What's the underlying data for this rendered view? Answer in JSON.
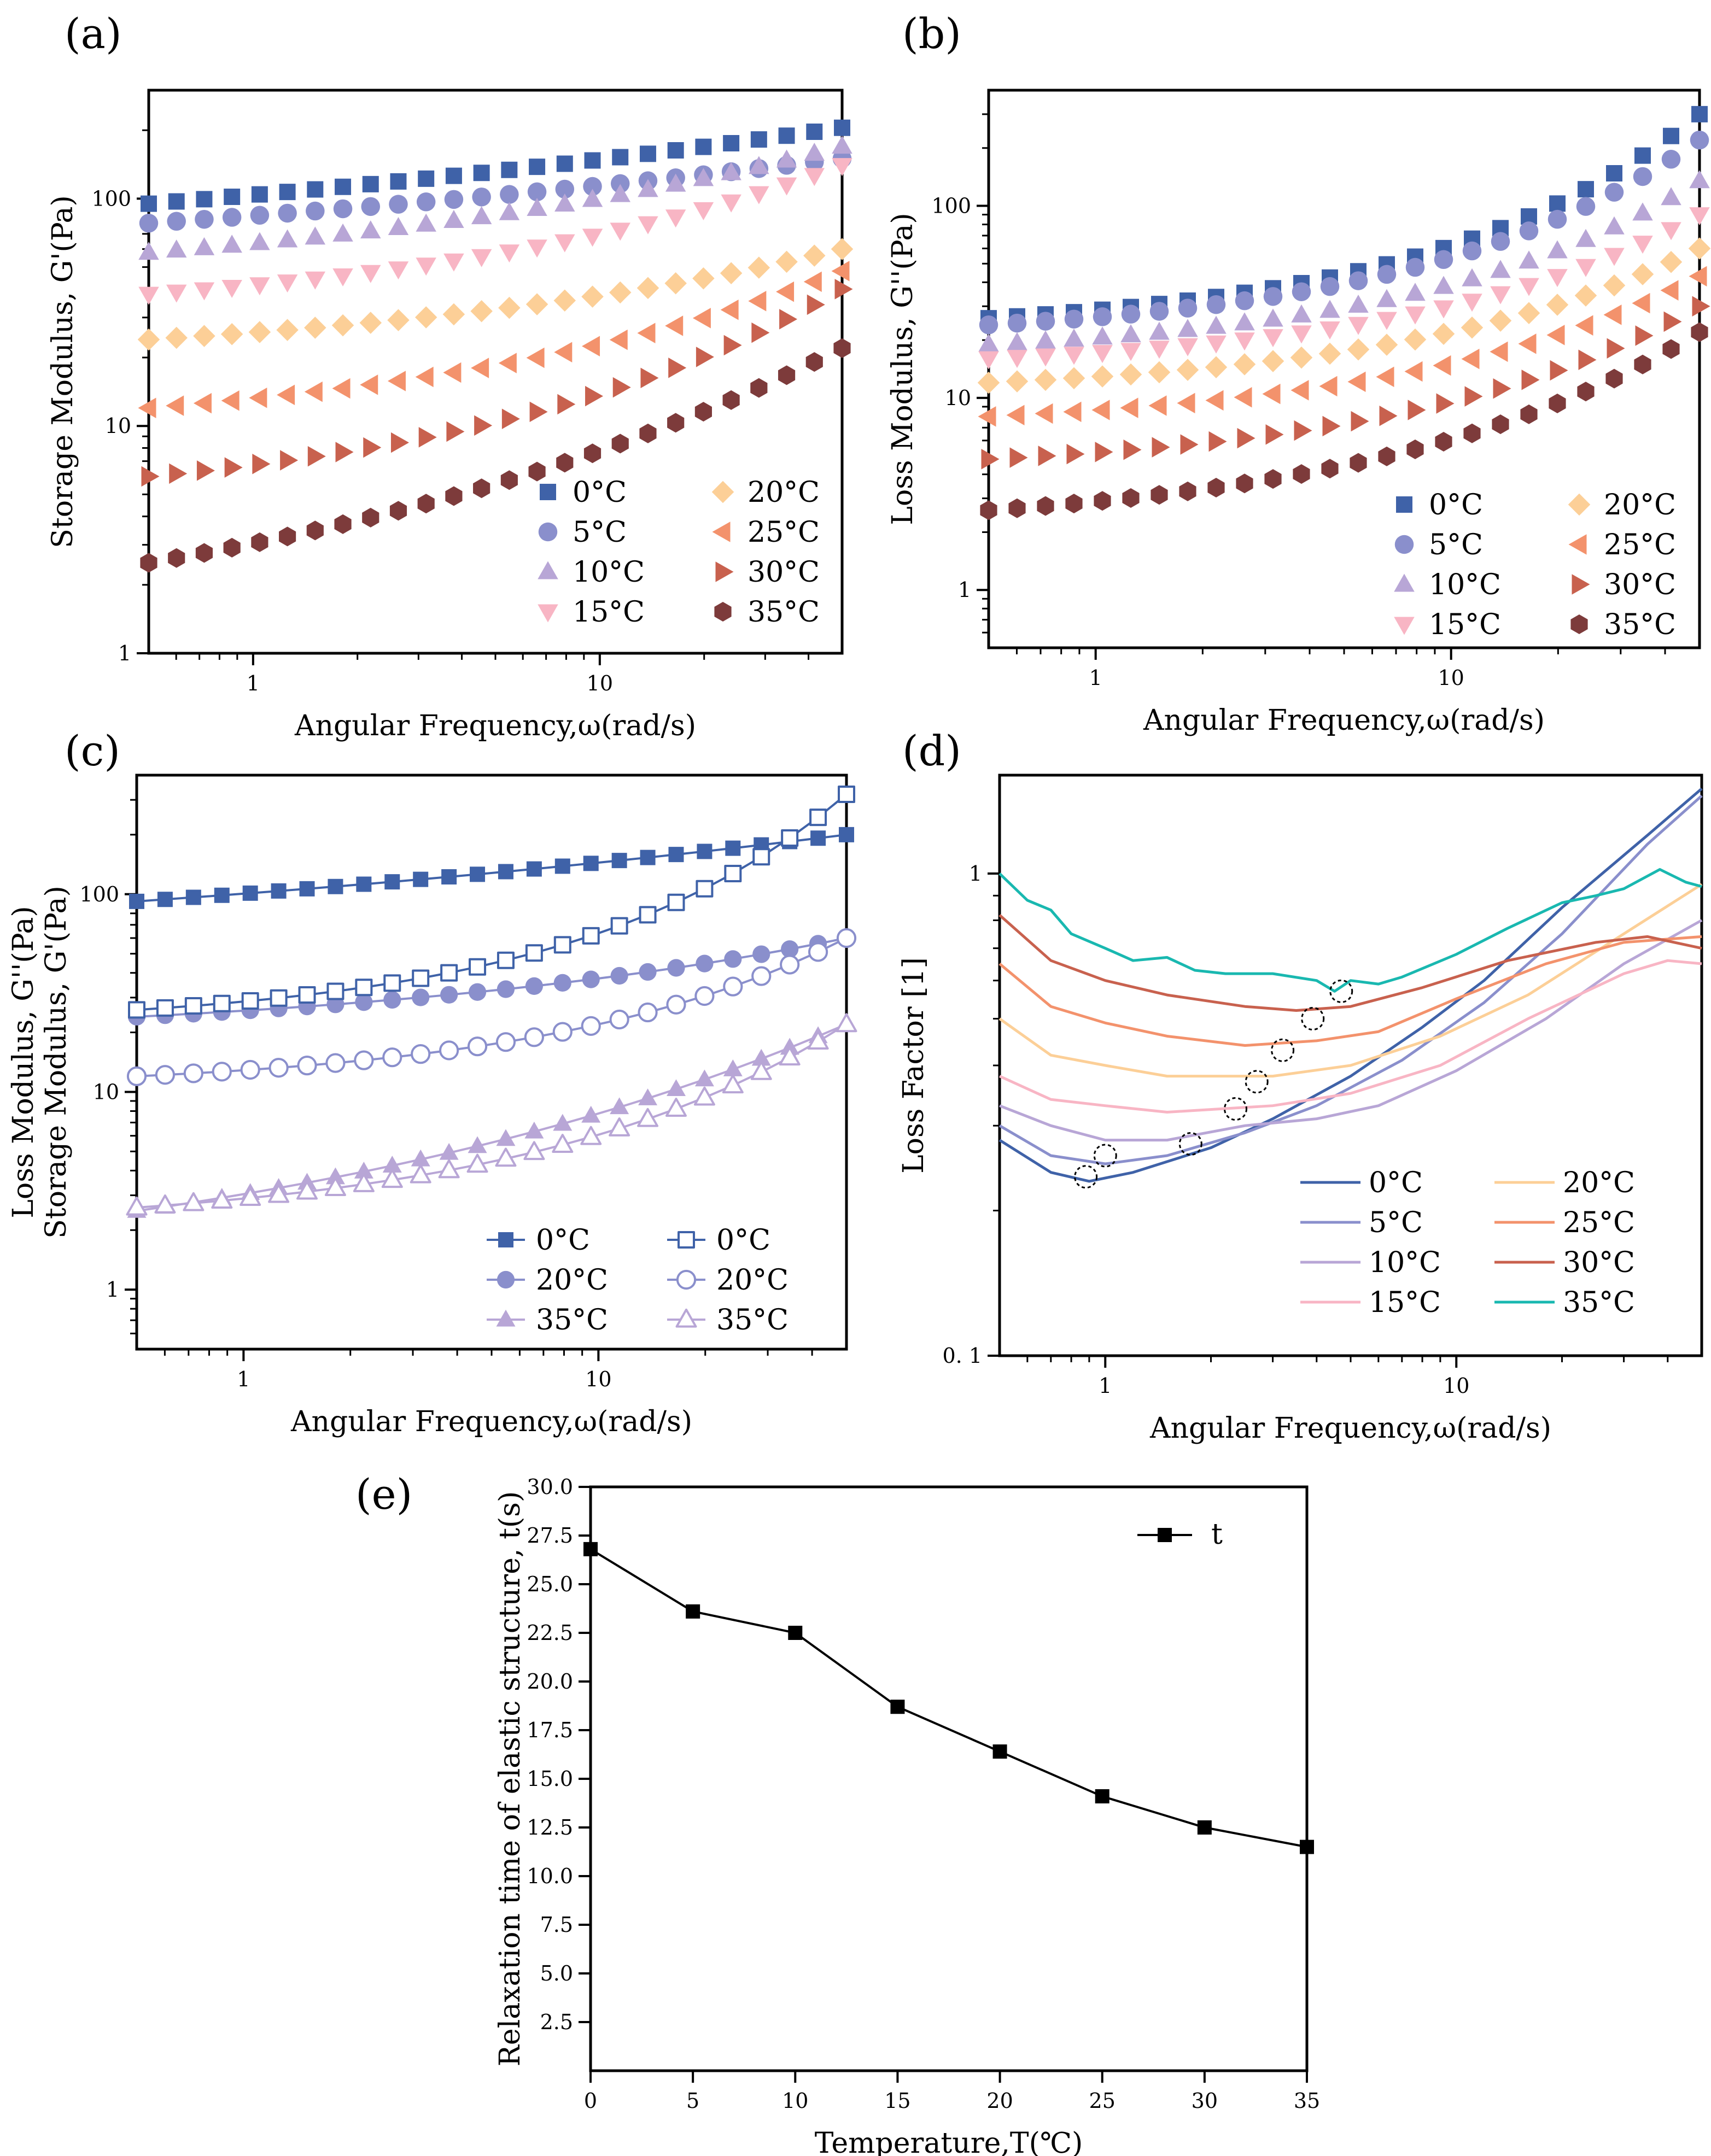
{
  "colors": {
    "c0": "#3f62a8",
    "c5": "#8a8fcc",
    "c10": "#b8a6d6",
    "c15": "#f8b5c4",
    "c20": "#fccf97",
    "c25": "#f3926c",
    "c30": "#c8614e",
    "c35": "#7d3b3b",
    "c35line": "#19b8b0",
    "black": "#000000"
  },
  "chart_data": [
    {
      "id": "a",
      "tag": "(a)",
      "type": "scatter",
      "xscale": "log",
      "yscale": "log",
      "xlim": [
        0.5,
        50
      ],
      "ylim": [
        1,
        300
      ],
      "xlabel": "Angular Frequency,ω(rad/s)",
      "ylabel": "Storage Modulus, G'(Pa)",
      "xticks": [
        {
          "v": 1,
          "label": "1"
        },
        {
          "v": 10,
          "label": "10"
        }
      ],
      "yticks": [
        {
          "v": 1,
          "label": "1"
        },
        {
          "v": 10,
          "label": "10"
        },
        {
          "v": 100,
          "label": "100"
        }
      ],
      "legend": "bottom-right",
      "series": [
        {
          "name": "0°C",
          "color_key": "c0",
          "marker": "square",
          "fill": true,
          "start": 95,
          "end": 205,
          "curve": 0.6
        },
        {
          "name": "5°C",
          "color_key": "c5",
          "marker": "circle",
          "fill": true,
          "start": 78,
          "end": 150,
          "curve": 0.6
        },
        {
          "name": "10°C",
          "color_key": "c10",
          "marker": "triangle-up",
          "fill": true,
          "start": 58,
          "end": 170,
          "curve": 1.2
        },
        {
          "name": "15°C",
          "color_key": "c15",
          "marker": "triangle-down",
          "fill": true,
          "start": 38,
          "end": 140,
          "curve": 1.6
        },
        {
          "name": "20°C",
          "color_key": "c20",
          "marker": "diamond",
          "fill": true,
          "start": 24,
          "end": 60,
          "curve": 1.4
        },
        {
          "name": "25°C",
          "color_key": "c25",
          "marker": "triangle-left",
          "fill": true,
          "start": 12,
          "end": 48,
          "curve": 1.6
        },
        {
          "name": "30°C",
          "color_key": "c30",
          "marker": "triangle-right",
          "fill": true,
          "start": 6,
          "end": 40,
          "curve": 1.8
        },
        {
          "name": "35°C",
          "color_key": "c35",
          "marker": "hexagon",
          "fill": true,
          "start": 2.5,
          "end": 22,
          "curve": 1.1
        }
      ]
    },
    {
      "id": "b",
      "tag": "(b)",
      "type": "scatter",
      "xscale": "log",
      "yscale": "log",
      "xlim": [
        0.5,
        50
      ],
      "ylim": [
        0.5,
        400
      ],
      "xlabel": "Angular Frequency,ω(rad/s)",
      "ylabel": "Loss Modulus, G''(Pa)",
      "xticks": [
        {
          "v": 1,
          "label": "1"
        },
        {
          "v": 10,
          "label": "10"
        }
      ],
      "yticks": [
        {
          "v": 1,
          "label": "1"
        },
        {
          "v": 10,
          "label": "10"
        },
        {
          "v": 100,
          "label": "100"
        }
      ],
      "legend": "bottom-right",
      "series": [
        {
          "name": "0°C",
          "color_key": "c0",
          "marker": "square",
          "fill": true,
          "start": 26,
          "end": 300,
          "curve": 2.6
        },
        {
          "name": "5°C",
          "color_key": "c5",
          "marker": "circle",
          "fill": true,
          "start": 24,
          "end": 220,
          "curve": 2.5
        },
        {
          "name": "10°C",
          "color_key": "c10",
          "marker": "triangle-up",
          "fill": true,
          "start": 19,
          "end": 135,
          "curve": 2.5
        },
        {
          "name": "15°C",
          "color_key": "c15",
          "marker": "triangle-down",
          "fill": true,
          "start": 16,
          "end": 90,
          "curve": 2.5
        },
        {
          "name": "20°C",
          "color_key": "c20",
          "marker": "diamond",
          "fill": true,
          "start": 12,
          "end": 60,
          "curve": 2.4
        },
        {
          "name": "25°C",
          "color_key": "c25",
          "marker": "triangle-left",
          "fill": true,
          "start": 8,
          "end": 43,
          "curve": 2.4
        },
        {
          "name": "30°C",
          "color_key": "c30",
          "marker": "triangle-right",
          "fill": true,
          "start": 4.8,
          "end": 30,
          "curve": 2.4
        },
        {
          "name": "35°C",
          "color_key": "c35",
          "marker": "hexagon",
          "fill": true,
          "start": 2.6,
          "end": 22,
          "curve": 2.2
        }
      ]
    },
    {
      "id": "c",
      "tag": "(c)",
      "type": "line",
      "xscale": "log",
      "yscale": "log",
      "xlim": [
        0.5,
        50
      ],
      "ylim": [
        0.5,
        400
      ],
      "xlabel": "Angular Frequency,ω(rad/s)",
      "ylabel": "Loss Modulus, G''(Pa)",
      "ylabel2": "Storage Modulus, G'(Pa)",
      "xticks": [
        {
          "v": 1,
          "label": "1"
        },
        {
          "v": 10,
          "label": "10"
        }
      ],
      "yticks": [
        {
          "v": 1,
          "label": "1"
        },
        {
          "v": 10,
          "label": "10"
        },
        {
          "v": 100,
          "label": "100"
        }
      ],
      "legend": "bottom-right",
      "series": [
        {
          "name": "0°C",
          "color_key": "c0",
          "marker": "square",
          "fill": true,
          "start": 92,
          "end": 200,
          "curve": 0.6
        },
        {
          "name": "20°C",
          "color_key": "c5",
          "marker": "circle",
          "fill": true,
          "start": 24,
          "end": 60,
          "curve": 1.4
        },
        {
          "name": "35°C",
          "color_key": "c10",
          "marker": "triangle-up",
          "fill": true,
          "start": 2.5,
          "end": 22,
          "curve": 1.1
        },
        {
          "name": "0°C",
          "color_key": "c0",
          "marker": "square",
          "fill": false,
          "start": 26,
          "end": 320,
          "curve": 2.6
        },
        {
          "name": "20°C",
          "color_key": "c5",
          "marker": "circle",
          "fill": false,
          "start": 12,
          "end": 60,
          "curve": 2.4
        },
        {
          "name": "35°C",
          "color_key": "c10",
          "marker": "triangle-up",
          "fill": false,
          "start": 2.6,
          "end": 22,
          "curve": 2.2
        }
      ]
    },
    {
      "id": "d",
      "tag": "(d)",
      "type": "line",
      "xscale": "log",
      "yscale": "log",
      "xlim": [
        0.5,
        50
      ],
      "ylim": [
        0.1,
        1.6
      ],
      "xlabel": "Angular Frequency,ω(rad/s)",
      "ylabel": "Loss Factor [1]",
      "xticks": [
        {
          "v": 1,
          "label": "1"
        },
        {
          "v": 10,
          "label": "10"
        }
      ],
      "yticks": [
        {
          "v": 0.1,
          "label": "0. 1"
        },
        {
          "v": 1,
          "label": "1"
        }
      ],
      "legend": "bottom-right",
      "series": [
        {
          "name": "0°C",
          "color_key": "c0",
          "points": [
            [
              0.5,
              0.28
            ],
            [
              0.7,
              0.24
            ],
            [
              0.9,
              0.23
            ],
            [
              1.2,
              0.24
            ],
            [
              2,
              0.27
            ],
            [
              3,
              0.31
            ],
            [
              5,
              0.38
            ],
            [
              8,
              0.48
            ],
            [
              12,
              0.6
            ],
            [
              20,
              0.85
            ],
            [
              35,
              1.2
            ],
            [
              50,
              1.5
            ]
          ]
        },
        {
          "name": "5°C",
          "color_key": "c5",
          "points": [
            [
              0.5,
              0.3
            ],
            [
              0.7,
              0.26
            ],
            [
              1,
              0.25
            ],
            [
              1.5,
              0.26
            ],
            [
              2.5,
              0.29
            ],
            [
              4,
              0.33
            ],
            [
              7,
              0.41
            ],
            [
              12,
              0.54
            ],
            [
              20,
              0.75
            ],
            [
              35,
              1.15
            ],
            [
              50,
              1.45
            ]
          ]
        },
        {
          "name": "10°C",
          "color_key": "c10",
          "points": [
            [
              0.5,
              0.33
            ],
            [
              0.7,
              0.3
            ],
            [
              1,
              0.28
            ],
            [
              1.5,
              0.28
            ],
            [
              2.5,
              0.3
            ],
            [
              4,
              0.31
            ],
            [
              6,
              0.33
            ],
            [
              10,
              0.39
            ],
            [
              18,
              0.5
            ],
            [
              30,
              0.65
            ],
            [
              50,
              0.8
            ]
          ]
        },
        {
          "name": "15°C",
          "color_key": "c15",
          "points": [
            [
              0.5,
              0.38
            ],
            [
              0.7,
              0.34
            ],
            [
              1,
              0.33
            ],
            [
              1.5,
              0.32
            ],
            [
              3,
              0.33
            ],
            [
              5,
              0.35
            ],
            [
              9,
              0.4
            ],
            [
              16,
              0.5
            ],
            [
              30,
              0.62
            ],
            [
              40,
              0.66
            ],
            [
              50,
              0.65
            ]
          ]
        },
        {
          "name": "20°C",
          "color_key": "c20",
          "points": [
            [
              0.5,
              0.5
            ],
            [
              0.7,
              0.42
            ],
            [
              1,
              0.4
            ],
            [
              1.5,
              0.38
            ],
            [
              3,
              0.38
            ],
            [
              5,
              0.4
            ],
            [
              9,
              0.46
            ],
            [
              16,
              0.56
            ],
            [
              30,
              0.75
            ],
            [
              50,
              0.95
            ]
          ]
        },
        {
          "name": "25°C",
          "color_key": "c25",
          "points": [
            [
              0.5,
              0.65
            ],
            [
              0.7,
              0.53
            ],
            [
              1,
              0.49
            ],
            [
              1.5,
              0.46
            ],
            [
              2.5,
              0.44
            ],
            [
              4,
              0.45
            ],
            [
              6,
              0.47
            ],
            [
              10,
              0.55
            ],
            [
              18,
              0.65
            ],
            [
              30,
              0.72
            ],
            [
              50,
              0.74
            ]
          ]
        },
        {
          "name": "30°C",
          "color_key": "c30",
          "points": [
            [
              0.5,
              0.82
            ],
            [
              0.7,
              0.66
            ],
            [
              1,
              0.6
            ],
            [
              1.5,
              0.56
            ],
            [
              2.5,
              0.53
            ],
            [
              3.5,
              0.52
            ],
            [
              5,
              0.53
            ],
            [
              8,
              0.58
            ],
            [
              14,
              0.66
            ],
            [
              25,
              0.72
            ],
            [
              35,
              0.74
            ],
            [
              50,
              0.7
            ]
          ]
        },
        {
          "name": "35°C",
          "color_key": "c35line",
          "points": [
            [
              0.5,
              1.0
            ],
            [
              0.6,
              0.88
            ],
            [
              0.7,
              0.84
            ],
            [
              0.8,
              0.75
            ],
            [
              1,
              0.7
            ],
            [
              1.2,
              0.66
            ],
            [
              1.5,
              0.67
            ],
            [
              1.8,
              0.63
            ],
            [
              2.2,
              0.62
            ],
            [
              3,
              0.62
            ],
            [
              4,
              0.6
            ],
            [
              4.5,
              0.57
            ],
            [
              5,
              0.6
            ],
            [
              6,
              0.59
            ],
            [
              7,
              0.61
            ],
            [
              10,
              0.68
            ],
            [
              14,
              0.77
            ],
            [
              20,
              0.87
            ],
            [
              25,
              0.9
            ],
            [
              30,
              0.93
            ],
            [
              38,
              1.02
            ],
            [
              45,
              0.96
            ],
            [
              50,
              0.94
            ]
          ]
        }
      ],
      "circles": [
        [
          0.88,
          0.235
        ],
        [
          1.0,
          0.26
        ],
        [
          1.75,
          0.275
        ],
        [
          2.35,
          0.325
        ],
        [
          2.7,
          0.37
        ],
        [
          3.2,
          0.43
        ],
        [
          3.9,
          0.5
        ],
        [
          4.7,
          0.57
        ]
      ]
    },
    {
      "id": "e",
      "tag": "(e)",
      "type": "line",
      "xscale": "linear",
      "yscale": "linear",
      "xlim": [
        0,
        35
      ],
      "ylim": [
        0,
        30
      ],
      "xlabel": "Temperature,T(℃)",
      "ylabel": "Relaxation time of elastic structure, t(s)",
      "xticks": [
        {
          "v": 0,
          "label": "0"
        },
        {
          "v": 5,
          "label": "5"
        },
        {
          "v": 10,
          "label": "10"
        },
        {
          "v": 15,
          "label": "15"
        },
        {
          "v": 20,
          "label": "20"
        },
        {
          "v": 25,
          "label": "25"
        },
        {
          "v": 30,
          "label": "30"
        },
        {
          "v": 35,
          "label": "35"
        }
      ],
      "yticks": [
        {
          "v": 2.5,
          "label": "2.5"
        },
        {
          "v": 5,
          "label": "5.0"
        },
        {
          "v": 7.5,
          "label": "7.5"
        },
        {
          "v": 10,
          "label": "10.0"
        },
        {
          "v": 12.5,
          "label": "12.5"
        },
        {
          "v": 15,
          "label": "15.0"
        },
        {
          "v": 17.5,
          "label": "17.5"
        },
        {
          "v": 20,
          "label": "20.0"
        },
        {
          "v": 22.5,
          "label": "22.5"
        },
        {
          "v": 25,
          "label": "25.0"
        },
        {
          "v": 27.5,
          "label": "27.5"
        },
        {
          "v": 30,
          "label": "30.0"
        }
      ],
      "legend": "top-right",
      "series": [
        {
          "name": "t",
          "color_key": "black",
          "marker": "square",
          "x": [
            0,
            5,
            10,
            15,
            20,
            25,
            30,
            35
          ],
          "y": [
            26.8,
            23.6,
            22.5,
            18.7,
            16.4,
            14.1,
            12.5,
            11.5
          ]
        }
      ]
    }
  ]
}
